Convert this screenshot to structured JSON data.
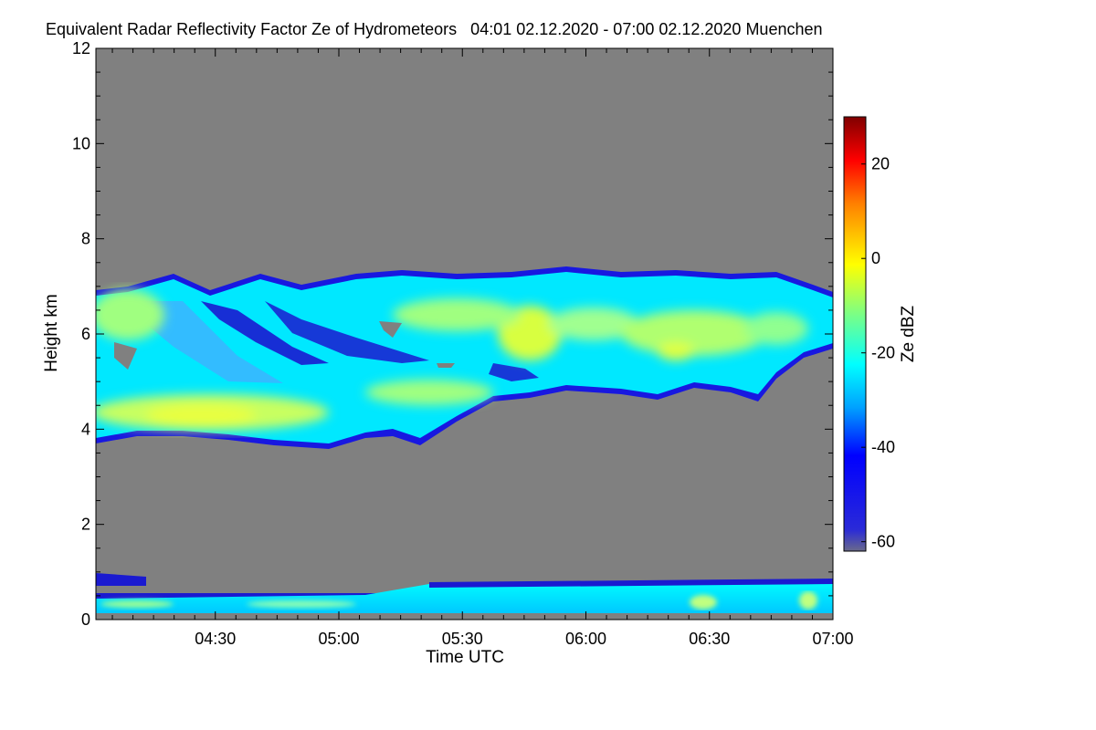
{
  "chart_data": {
    "type": "heatmap",
    "title": "Equivalent Radar Reflectivity Factor Ze of Hydrometeors   04:01 02.12.2020 - 07:00 02.12.2020 Muenchen",
    "xlabel": "Time UTC",
    "ylabel": "Height km",
    "xlim_minutes": [
      241,
      420
    ],
    "ylim": [
      0,
      12
    ],
    "x_ticks": [
      {
        "minute": 270,
        "label": "04:30"
      },
      {
        "minute": 300,
        "label": "05:00"
      },
      {
        "minute": 330,
        "label": "05:30"
      },
      {
        "minute": 360,
        "label": "06:00"
      },
      {
        "minute": 390,
        "label": "06:30"
      },
      {
        "minute": 420,
        "label": "07:00"
      }
    ],
    "y_ticks": [
      0,
      2,
      4,
      6,
      8,
      10,
      12
    ],
    "colorbar": {
      "label": "Ze dBZ",
      "range": [
        -62,
        30
      ],
      "ticks": [
        20,
        0,
        -20,
        -40,
        -60
      ]
    },
    "background_color": "#808080",
    "features": [
      {
        "name": "main-cloud-layer",
        "base_km": [
          3.7,
          4.8
        ],
        "top_km": [
          6.5,
          7.4
        ],
        "typical_dBZ": [
          -30,
          -5
        ]
      },
      {
        "name": "low-level-clutter-layer",
        "base_km": 0.05,
        "top_km": [
          0.4,
          0.7
        ],
        "typical_dBZ": [
          -40,
          -20
        ]
      }
    ]
  }
}
